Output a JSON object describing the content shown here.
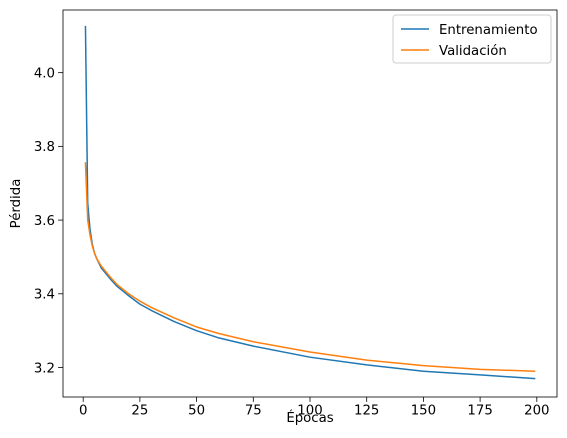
{
  "chart_data": {
    "type": "line",
    "title": "",
    "xlabel": "Épocas",
    "ylabel": "Pérdida",
    "xlim": [
      -8.9,
      208.9
    ],
    "ylim": [
      3.12,
      4.17
    ],
    "xticks": [
      0,
      25,
      50,
      75,
      100,
      125,
      150,
      175,
      200
    ],
    "yticks": [
      3.2,
      3.4,
      3.6,
      3.8,
      4.0
    ],
    "ytick_labels": [
      "3.2",
      "3.4",
      "3.6",
      "3.8",
      "4.0"
    ],
    "grid": false,
    "legend_position": "top-right",
    "series": [
      {
        "name": "Entrenamiento",
        "color": "#1f77b4",
        "x": [
          1,
          2,
          3,
          4,
          5,
          6,
          8,
          10,
          12,
          15,
          20,
          25,
          30,
          40,
          50,
          60,
          75,
          100,
          125,
          150,
          175,
          199
        ],
        "y": [
          4.125,
          3.645,
          3.575,
          3.535,
          3.51,
          3.495,
          3.47,
          3.455,
          3.44,
          3.42,
          3.395,
          3.372,
          3.355,
          3.325,
          3.3,
          3.28,
          3.258,
          3.228,
          3.207,
          3.19,
          3.18,
          3.17
        ]
      },
      {
        "name": "Validación",
        "color": "#ff7f0e",
        "x": [
          1,
          2,
          3,
          4,
          5,
          6,
          8,
          10,
          12,
          15,
          20,
          25,
          30,
          40,
          50,
          60,
          75,
          100,
          125,
          150,
          175,
          199
        ],
        "y": [
          3.755,
          3.6,
          3.56,
          3.53,
          3.51,
          3.495,
          3.475,
          3.46,
          3.445,
          3.425,
          3.4,
          3.38,
          3.363,
          3.335,
          3.31,
          3.292,
          3.27,
          3.242,
          3.22,
          3.205,
          3.195,
          3.19
        ]
      }
    ]
  }
}
